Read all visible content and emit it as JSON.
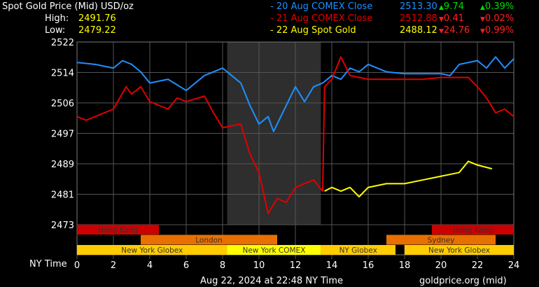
{
  "header": {
    "title": "Spot Gold Price (Mid) USD/oz",
    "high_label": "High:",
    "high_value": "2491.76",
    "low_label": "Low:",
    "low_value": "2479.22"
  },
  "legend": [
    {
      "label": "- 20 Aug COMEX Close",
      "price": "2513.30",
      "change": "9.74",
      "pct": "0.39%",
      "dir": "up",
      "color": "#1e90ff"
    },
    {
      "label": "- 21 Aug COMEX Close",
      "price": "2512.88",
      "change": "0.41",
      "pct": "0.02%",
      "dir": "down",
      "color": "#e00000"
    },
    {
      "label": "- 22 Aug Spot Gold",
      "price": "2488.12",
      "change": "24.76",
      "pct": "0.99%",
      "dir": "down",
      "color": "#ffff00"
    }
  ],
  "footer": {
    "timestamp": "Aug 22, 2024 at 22:48 NY Time",
    "source": "goldprice.org (mid)"
  },
  "colors": {
    "up": "#00dd00",
    "down": "#ff2020"
  },
  "chart_data": {
    "type": "line",
    "xlabel": "NY Time",
    "xlim": [
      0,
      24
    ],
    "xticks": [
      "0",
      "2",
      "4",
      "6",
      "8",
      "10",
      "12",
      "14",
      "16",
      "18",
      "20",
      "22",
      "24"
    ],
    "ylim": [
      2473,
      2522
    ],
    "yticks": [
      "2522",
      "2514",
      "2506",
      "2497",
      "2489",
      "2481",
      "2473"
    ],
    "grid": true,
    "shaded_hours": [
      8.25,
      13.4
    ],
    "series": [
      {
        "name": "20 Aug COMEX Close",
        "color": "#1e90ff",
        "points": [
          [
            0,
            2516.5
          ],
          [
            1,
            2516
          ],
          [
            2,
            2515
          ],
          [
            2.5,
            2517
          ],
          [
            3,
            2516
          ],
          [
            3.5,
            2514
          ],
          [
            4,
            2511
          ],
          [
            5,
            2512
          ],
          [
            6,
            2509
          ],
          [
            6.5,
            2511
          ],
          [
            7,
            2513
          ],
          [
            8,
            2515
          ],
          [
            8.5,
            2513
          ],
          [
            9,
            2511
          ],
          [
            9.5,
            2505
          ],
          [
            10,
            2500
          ],
          [
            10.5,
            2502
          ],
          [
            10.8,
            2498
          ],
          [
            11.5,
            2505
          ],
          [
            12,
            2510
          ],
          [
            12.5,
            2506
          ],
          [
            13,
            2510
          ],
          [
            13.5,
            2511
          ],
          [
            14,
            2513
          ],
          [
            14.5,
            2512
          ],
          [
            15,
            2515
          ],
          [
            15.5,
            2514
          ],
          [
            16,
            2516
          ],
          [
            17,
            2514
          ],
          [
            18,
            2513.5
          ],
          [
            19,
            2513.5
          ],
          [
            20,
            2513.5
          ],
          [
            20.5,
            2513
          ],
          [
            21,
            2516
          ],
          [
            22,
            2517
          ],
          [
            22.5,
            2515
          ],
          [
            23,
            2518
          ],
          [
            23.5,
            2515
          ],
          [
            24,
            2517.5
          ]
        ]
      },
      {
        "name": "21 Aug COMEX Close",
        "color": "#e00000",
        "points": [
          [
            0,
            2502
          ],
          [
            0.5,
            2501
          ],
          [
            1.5,
            2503
          ],
          [
            2,
            2504
          ],
          [
            2.7,
            2510
          ],
          [
            3,
            2508
          ],
          [
            3.5,
            2510
          ],
          [
            4,
            2506
          ],
          [
            5,
            2504
          ],
          [
            5.5,
            2507
          ],
          [
            6,
            2506
          ],
          [
            7,
            2507.5
          ],
          [
            7.5,
            2503
          ],
          [
            8,
            2499
          ],
          [
            8.5,
            2499.5
          ],
          [
            9,
            2500
          ],
          [
            9.5,
            2492
          ],
          [
            10,
            2487
          ],
          [
            10.5,
            2476
          ],
          [
            11,
            2480
          ],
          [
            11.5,
            2479
          ],
          [
            12,
            2483
          ],
          [
            13,
            2485
          ],
          [
            13.5,
            2482
          ],
          [
            13.6,
            2510
          ],
          [
            14,
            2512
          ],
          [
            14.5,
            2518
          ],
          [
            15,
            2513
          ],
          [
            16,
            2512
          ],
          [
            17,
            2512
          ],
          [
            19,
            2512
          ],
          [
            20,
            2512.5
          ],
          [
            21.5,
            2512.5
          ],
          [
            22,
            2510
          ],
          [
            22.5,
            2507
          ],
          [
            23,
            2503
          ],
          [
            23.5,
            2504
          ],
          [
            24,
            2502
          ]
        ]
      },
      {
        "name": "22 Aug Spot Gold",
        "color": "#ffff00",
        "points": [
          [
            13.6,
            2482
          ],
          [
            14,
            2483
          ],
          [
            14.5,
            2482
          ],
          [
            15,
            2483
          ],
          [
            15.5,
            2480.5
          ],
          [
            16,
            2483
          ],
          [
            17,
            2484
          ],
          [
            18,
            2484
          ],
          [
            19,
            2485
          ],
          [
            20,
            2486
          ],
          [
            21,
            2487
          ],
          [
            21.5,
            2490
          ],
          [
            22,
            2489
          ],
          [
            22.8,
            2488
          ]
        ]
      }
    ],
    "sessions": [
      {
        "label": "Hong Kong",
        "row": 0,
        "start": 0,
        "end": 4.5,
        "color": "#cc0000"
      },
      {
        "label": "Hong Kong",
        "row": 0,
        "start": 19.5,
        "end": 24,
        "color": "#cc0000"
      },
      {
        "label": "London",
        "row": 1,
        "start": 3.5,
        "end": 11,
        "color": "#e87000"
      },
      {
        "label": "Sydney",
        "row": 1,
        "start": 17,
        "end": 23,
        "color": "#e87000"
      },
      {
        "label": "New York Globex",
        "row": 2,
        "start": 0,
        "end": 8.25,
        "color": "#ffcc00"
      },
      {
        "label": "New York COMEX",
        "row": 2,
        "start": 8.25,
        "end": 13.4,
        "color": "#ffff00"
      },
      {
        "label": "NY Globex",
        "row": 2,
        "start": 13.4,
        "end": 17.5,
        "color": "#ffcc00"
      },
      {
        "label": "New York Globex",
        "row": 2,
        "start": 18,
        "end": 24,
        "color": "#ffcc00"
      }
    ]
  }
}
